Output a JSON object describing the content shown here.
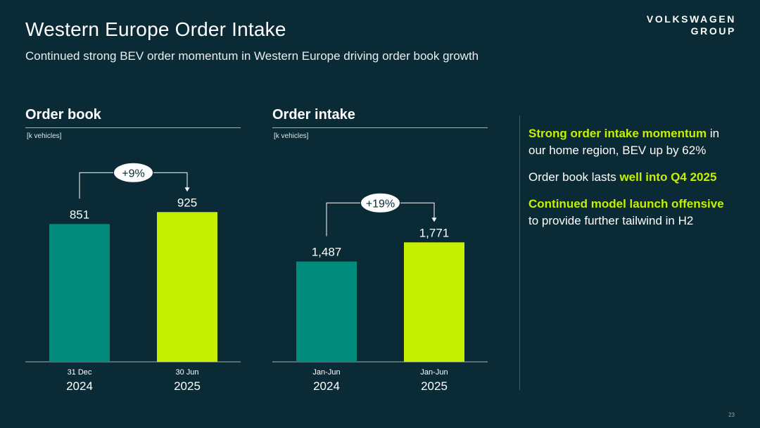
{
  "header": {
    "title": "Western Europe Order Intake",
    "subtitle": "Continued strong BEV order momentum in Western Europe driving order book growth",
    "logo_line1": "VOLKSWAGEN",
    "logo_line2": "GROUP"
  },
  "colors": {
    "background": "#0a2a35",
    "bar_prior": "#008b7d",
    "bar_current": "#c6f000",
    "highlight": "#c6f000"
  },
  "chart_data": [
    {
      "type": "bar",
      "title": "Order book",
      "ylabel": "[k vehicles]",
      "categories": [
        {
          "top": "31 Dec",
          "bottom": "2024"
        },
        {
          "top": "30 Jun",
          "bottom": "2025"
        }
      ],
      "values": [
        851,
        925
      ],
      "value_labels": [
        "851",
        "925"
      ],
      "change_label": "+9%",
      "ylim": [
        0,
        1000
      ]
    },
    {
      "type": "bar",
      "title": "Order intake",
      "ylabel": "[k vehicles]",
      "categories": [
        {
          "top": "Jan-Jun",
          "bottom": "2024"
        },
        {
          "top": "Jan-Jun",
          "bottom": "2025"
        }
      ],
      "values": [
        1487,
        1771
      ],
      "value_labels": [
        "1,487",
        "1,771"
      ],
      "change_label": "+19%",
      "ylim": [
        0,
        2400
      ]
    }
  ],
  "bullets": [
    [
      {
        "text": "Strong order intake momentum",
        "hl": true
      },
      {
        "text": " in our home region, BEV up by 62%",
        "hl": false
      }
    ],
    [
      {
        "text": "Order book lasts ",
        "hl": false
      },
      {
        "text": "well into Q4 2025",
        "hl": true
      }
    ],
    [
      {
        "text": "Continued model launch offensive",
        "hl": true
      },
      {
        "text": " to provide further tailwind in H2",
        "hl": false
      }
    ]
  ],
  "page_number": "23"
}
